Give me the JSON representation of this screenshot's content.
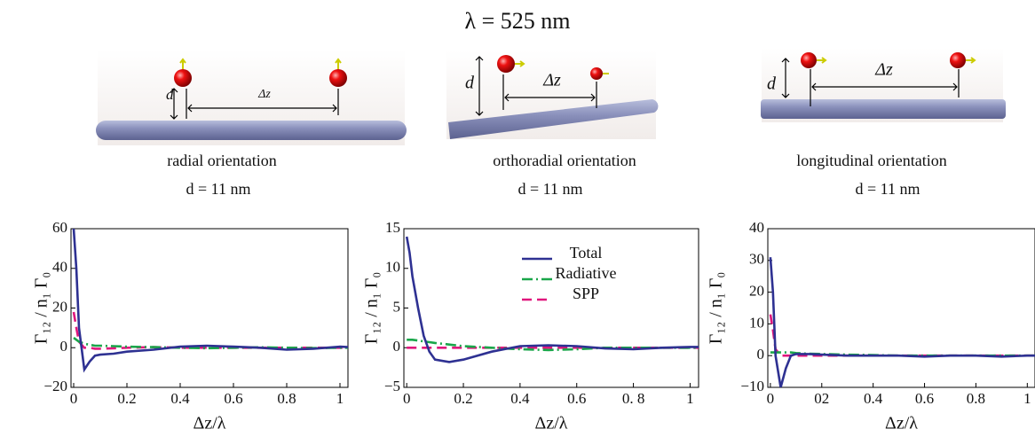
{
  "title": "λ = 525 nm",
  "chart_data": [
    {
      "type": "line",
      "caption": "radial orientation",
      "subtitle": "d = 11 nm",
      "diagram": {
        "height_label": "d",
        "distance_label": "Δz"
      },
      "x_label": "Δz/λ",
      "y_label": "Γ₁₂ / n₁ Γ₀",
      "xlim": [
        -0.01,
        1.03
      ],
      "ylim": [
        -20,
        60
      ],
      "xticks": [
        0,
        0.2,
        0.4,
        0.6,
        0.8,
        1
      ],
      "yticks": [
        {
          "value": -20,
          "label": "−20"
        },
        0,
        20,
        40,
        60
      ],
      "x": [
        0,
        0.01,
        0.02,
        0.04,
        0.06,
        0.08,
        0.1,
        0.15,
        0.2,
        0.3,
        0.4,
        0.5,
        0.6,
        0.7,
        0.8,
        0.9,
        1.0,
        1.03
      ],
      "series": [
        {
          "color": "#2e3192",
          "style": "solid",
          "values": [
            60,
            40,
            10,
            -11,
            -7,
            -4,
            -3.5,
            -3,
            -2,
            -1,
            0.5,
            1,
            0.5,
            0,
            -1,
            -0.5,
            0.5,
            0.3
          ]
        },
        {
          "color": "#1aa64a",
          "style": "dashdot",
          "values": [
            5,
            4,
            3,
            2,
            1.5,
            1,
            1,
            0.8,
            0.5,
            0.3,
            0,
            -0.3,
            0,
            0.2,
            0,
            -0.2,
            0,
            0
          ]
        },
        {
          "color": "#e0177d",
          "style": "dashed",
          "values": [
            18,
            10,
            3,
            0,
            0,
            -0.5,
            -0.5,
            -0.3,
            0,
            0.3,
            0,
            0,
            0,
            0,
            0,
            0,
            0,
            0
          ]
        }
      ]
    },
    {
      "type": "line",
      "caption": "orthoradial orientation",
      "subtitle": "d = 11 nm",
      "diagram": {
        "height_label": "d",
        "distance_label": "Δz"
      },
      "x_label": "Δz/λ",
      "y_label": "Γ₁₂ / n₁ Γ₀",
      "xlim": [
        -0.01,
        1.03
      ],
      "ylim": [
        -5,
        15
      ],
      "xticks": [
        0,
        0.2,
        0.4,
        0.6,
        {
          "value": 0.8,
          "label": "0. 8"
        },
        1
      ],
      "yticks": [
        {
          "value": -5,
          "label": "−5"
        },
        0,
        5,
        10,
        15
      ],
      "x": [
        0,
        0.01,
        0.02,
        0.04,
        0.06,
        0.08,
        0.1,
        0.15,
        0.2,
        0.3,
        0.4,
        0.5,
        0.6,
        0.7,
        0.8,
        0.9,
        1.0,
        1.03
      ],
      "series": [
        {
          "name": "Total",
          "color": "#2e3192",
          "style": "solid",
          "values": [
            14,
            12,
            9,
            5,
            1.5,
            -0.5,
            -1.5,
            -1.8,
            -1.5,
            -0.5,
            0.2,
            0.3,
            0.2,
            -0.1,
            -0.2,
            0,
            0.1,
            0.1
          ]
        },
        {
          "name": "Radiative",
          "color": "#1aa64a",
          "style": "dashdot",
          "values": [
            1,
            1,
            1,
            0.9,
            0.8,
            0.7,
            0.6,
            0.4,
            0.2,
            0,
            -0.2,
            -0.3,
            -0.2,
            0,
            0,
            0,
            0,
            0
          ]
        },
        {
          "name": "SPP",
          "color": "#e0177d",
          "style": "dashed",
          "values": [
            0,
            0,
            0,
            0,
            0,
            0,
            0,
            0,
            0,
            0,
            0,
            0,
            0,
            0,
            0,
            0,
            0,
            0
          ]
        }
      ]
    },
    {
      "type": "line",
      "caption": "longitudinal orientation",
      "subtitle": "d = 11 nm",
      "diagram": {
        "height_label": "d",
        "distance_label": "Δz"
      },
      "x_label": "Δz/λ",
      "y_label": "Γ₁₂ / n₁ Γ₀",
      "xlim": [
        -0.01,
        1.03
      ],
      "ylim": [
        -10,
        40
      ],
      "xticks": [
        0,
        {
          "value": 0.2,
          "label": "02"
        },
        0.4,
        0.6,
        0.8,
        1
      ],
      "yticks": [
        {
          "value": -10,
          "label": "−10"
        },
        0,
        10,
        20,
        30,
        40
      ],
      "x": [
        0,
        0.01,
        0.02,
        0.04,
        0.06,
        0.08,
        0.1,
        0.15,
        0.2,
        0.3,
        0.4,
        0.5,
        0.6,
        0.7,
        0.8,
        0.9,
        1.0,
        1.03
      ],
      "series": [
        {
          "color": "#2e3192",
          "style": "solid",
          "values": [
            31,
            20,
            0,
            -10,
            -4,
            0,
            0.5,
            0.5,
            0.3,
            0,
            0,
            0,
            -0.3,
            0,
            0,
            -0.3,
            0,
            0
          ]
        },
        {
          "color": "#1aa64a",
          "style": "dashdot",
          "values": [
            1,
            1,
            1,
            1,
            1,
            1,
            0.8,
            0.6,
            0.5,
            0.3,
            0.2,
            0,
            0,
            0,
            0,
            0,
            0,
            0
          ]
        },
        {
          "color": "#e0177d",
          "style": "dashed",
          "values": [
            13,
            8,
            2,
            0,
            0,
            0,
            0,
            0,
            0,
            0,
            0,
            0,
            0,
            0,
            0,
            0,
            0,
            0
          ]
        }
      ]
    }
  ]
}
